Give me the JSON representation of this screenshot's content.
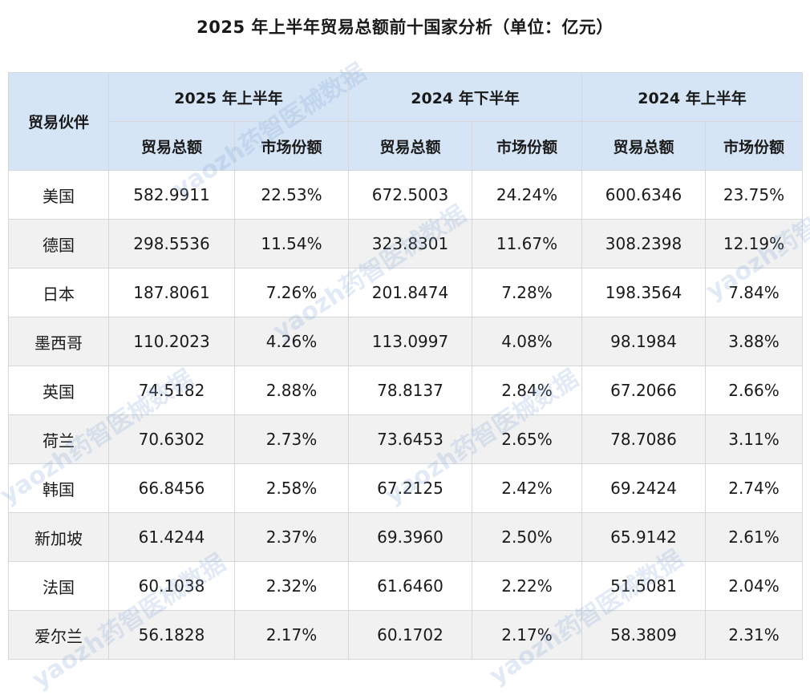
{
  "title": "2025 年上半年贸易总额前十国家分析（单位：亿元）",
  "header": {
    "partner": "贸易伙伴",
    "periods": [
      "2025 年上半年",
      "2024 年下半年",
      "2024 年上半年"
    ],
    "sub_total": "贸易总额",
    "sub_share": "市场份额"
  },
  "rows": [
    {
      "country": "美国",
      "c": [
        "582.9911",
        "22.53%",
        "672.5003",
        "24.24%",
        "600.6346",
        "23.75%"
      ]
    },
    {
      "country": "德国",
      "c": [
        "298.5536",
        "11.54%",
        "323.8301",
        "11.67%",
        "308.2398",
        "12.19%"
      ]
    },
    {
      "country": "日本",
      "c": [
        "187.8061",
        "7.26%",
        "201.8474",
        "7.28%",
        "198.3564",
        "7.84%"
      ]
    },
    {
      "country": "墨西哥",
      "c": [
        "110.2023",
        "4.26%",
        "113.0997",
        "4.08%",
        "98.1984",
        "3.88%"
      ]
    },
    {
      "country": "英国",
      "c": [
        "74.5182",
        "2.88%",
        "78.8137",
        "2.84%",
        "67.2066",
        "2.66%"
      ]
    },
    {
      "country": "荷兰",
      "c": [
        "70.6302",
        "2.73%",
        "73.6453",
        "2.65%",
        "78.7086",
        "3.11%"
      ]
    },
    {
      "country": "韩国",
      "c": [
        "66.8456",
        "2.58%",
        "67.2125",
        "2.42%",
        "69.2424",
        "2.74%"
      ]
    },
    {
      "country": "新加坡",
      "c": [
        "61.4244",
        "2.37%",
        "69.3960",
        "2.50%",
        "65.9142",
        "2.61%"
      ]
    },
    {
      "country": "法国",
      "c": [
        "60.1038",
        "2.32%",
        "61.6460",
        "2.22%",
        "51.5081",
        "2.04%"
      ]
    },
    {
      "country": "爱尔兰",
      "c": [
        "56.1828",
        "2.17%",
        "60.1702",
        "2.17%",
        "58.3809",
        "2.31%"
      ]
    }
  ],
  "watermark": "yaozh药智医械数据"
}
